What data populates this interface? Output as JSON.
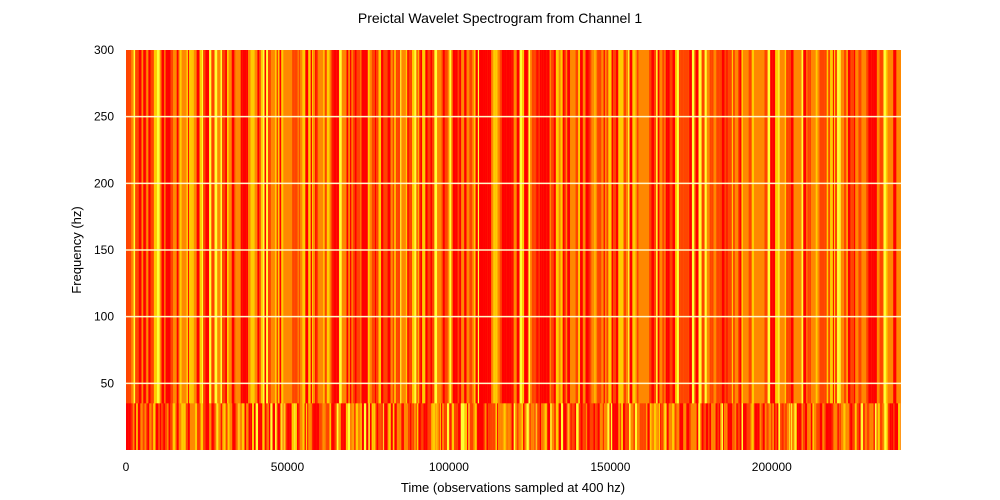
{
  "chart_data": {
    "type": "heatmap",
    "title": "Preictal Wavelet Spectrogram from Channel 1",
    "xlabel": "Time (observations sampled at 400 hz)",
    "ylabel": "Frequency (hz)",
    "xlim": [
      0,
      240000
    ],
    "ylim": [
      0,
      300
    ],
    "x_ticks": [
      0,
      50000,
      100000,
      150000,
      200000
    ],
    "x_tick_labels": [
      "0",
      "50000",
      "100000",
      "150000",
      "200000"
    ],
    "y_ticks": [
      50,
      100,
      150,
      200,
      250,
      300
    ],
    "y_tick_labels": [
      "50",
      "100",
      "150",
      "200",
      "250",
      "300"
    ],
    "grid": true,
    "legend": "none",
    "colormap": [
      "#ff0000",
      "#ff4400",
      "#ff8800",
      "#ffcc00",
      "#ffff33"
    ]
  }
}
